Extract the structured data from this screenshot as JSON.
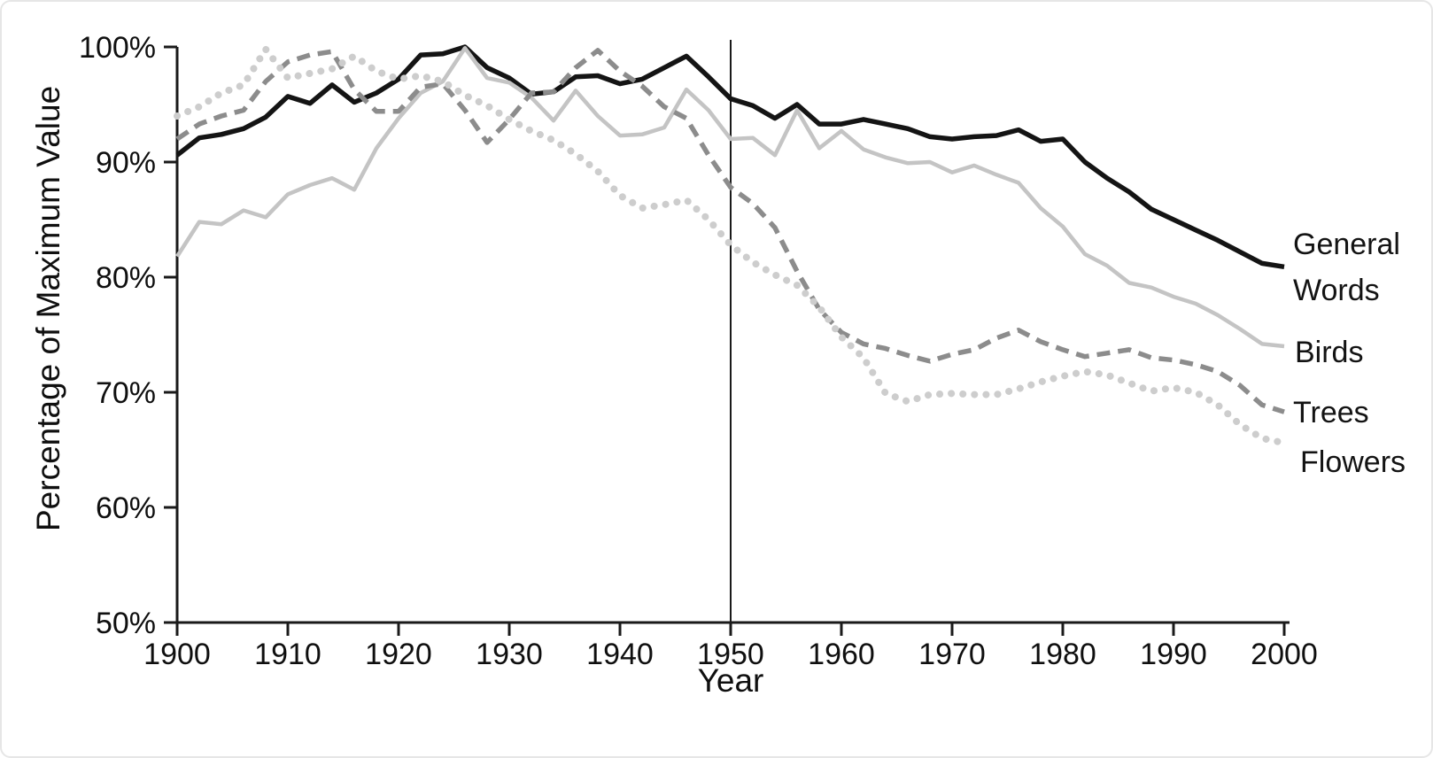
{
  "chart_data": {
    "type": "line",
    "title": "",
    "xlabel": "Year",
    "ylabel": "Percentage of Maximum Value",
    "grid": false,
    "legend_position": "right-of-plot",
    "x_axis": {
      "range": [
        1900,
        2000
      ],
      "ticks": [
        1900,
        1910,
        1920,
        1930,
        1940,
        1950,
        1960,
        1970,
        1980,
        1990,
        2000
      ]
    },
    "y_axis": {
      "range": [
        50,
        100
      ],
      "ticks": [
        {
          "label": "100%",
          "value": 100
        },
        {
          "label": "90%",
          "value": 90
        },
        {
          "label": "80%",
          "value": 80
        },
        {
          "label": "70%",
          "value": 70
        },
        {
          "label": "60%",
          "value": 60
        },
        {
          "label": "50%",
          "value": 50
        }
      ]
    },
    "reference_line": {
      "axis": "x",
      "value": 1950,
      "color": "#1a1a1a"
    },
    "axis_color": "#1a1a1a",
    "x": [
      1900,
      1902,
      1904,
      1906,
      1908,
      1910,
      1912,
      1914,
      1916,
      1918,
      1920,
      1922,
      1924,
      1926,
      1928,
      1930,
      1932,
      1934,
      1936,
      1938,
      1940,
      1942,
      1944,
      1946,
      1948,
      1950,
      1952,
      1954,
      1956,
      1958,
      1960,
      1962,
      1964,
      1966,
      1968,
      1970,
      1972,
      1974,
      1976,
      1978,
      1980,
      1982,
      1984,
      1986,
      1988,
      1990,
      1992,
      1994,
      1996,
      1998,
      2000
    ],
    "series": [
      {
        "name": "General Words",
        "label_lines": [
          "General",
          "Words"
        ],
        "line_style": "solid",
        "color": "#141414",
        "stroke_width": 5.5,
        "values": [
          90.6,
          92.1,
          92.4,
          92.9,
          93.9,
          95.7,
          95.1,
          96.7,
          95.2,
          96.0,
          97.2,
          99.3,
          99.4,
          100,
          98.2,
          97.3,
          95.9,
          96.1,
          97.4,
          97.5,
          96.8,
          97.2,
          98.2,
          99.2,
          97.4,
          95.5,
          94.9,
          93.8,
          95.0,
          93.3,
          93.3,
          93.7,
          93.3,
          92.9,
          92.2,
          92.0,
          92.2,
          92.3,
          92.8,
          91.8,
          92.0,
          90.0,
          88.6,
          87.4,
          85.9,
          85.0,
          84.1,
          83.2,
          82.2,
          81.2,
          80.9
        ]
      },
      {
        "name": "Birds",
        "label_lines": [
          "Birds"
        ],
        "line_style": "solid",
        "color": "#c4c4c4",
        "stroke_width": 4.5,
        "values": [
          81.8,
          84.8,
          84.6,
          85.8,
          85.2,
          87.2,
          88.0,
          88.6,
          87.6,
          91.2,
          93.8,
          96.0,
          97.0,
          99.9,
          97.3,
          96.9,
          95.6,
          93.6,
          96.2,
          94.0,
          92.3,
          92.4,
          93.0,
          96.3,
          94.5,
          92.0,
          92.1,
          90.6,
          94.5,
          91.2,
          92.7,
          91.1,
          90.4,
          89.9,
          90.0,
          89.1,
          89.7,
          88.9,
          88.2,
          86.0,
          84.4,
          82.0,
          81.0,
          79.5,
          79.1,
          78.3,
          77.7,
          76.7,
          75.5,
          74.2,
          74.0
        ]
      },
      {
        "name": "Trees",
        "label_lines": [
          "Trees"
        ],
        "line_style": "dashed",
        "color": "#8c8c8c",
        "stroke_width": 5.5,
        "values": [
          92.0,
          93.3,
          94.0,
          94.5,
          97.0,
          98.7,
          99.3,
          99.6,
          96.3,
          94.4,
          94.4,
          96.5,
          96.8,
          94.5,
          91.7,
          93.7,
          96.0,
          96.1,
          98.2,
          99.7,
          97.9,
          96.6,
          94.8,
          93.8,
          90.6,
          87.8,
          86.4,
          84.3,
          80.5,
          77.2,
          75.2,
          74.2,
          73.8,
          73.2,
          72.7,
          73.3,
          73.7,
          74.7,
          75.4,
          74.4,
          73.7,
          73.1,
          73.4,
          73.7,
          73.0,
          72.8,
          72.4,
          71.8,
          70.6,
          68.9,
          68.3
        ]
      },
      {
        "name": "Flowers",
        "label_lines": [
          "Flowers"
        ],
        "line_style": "dotted",
        "color": "#cdcdcd",
        "stroke_width": 8,
        "values": [
          94.0,
          94.8,
          96.0,
          96.7,
          99.8,
          97.3,
          97.7,
          98.1,
          99.2,
          97.9,
          97.2,
          97.5,
          97.0,
          95.8,
          94.9,
          93.7,
          92.7,
          91.9,
          90.7,
          89.2,
          87.1,
          86.0,
          86.3,
          86.7,
          85.0,
          82.8,
          81.3,
          80.2,
          79.3,
          77.4,
          74.8,
          73.0,
          69.9,
          69.2,
          69.8,
          69.9,
          69.8,
          69.8,
          70.3,
          70.9,
          71.4,
          71.8,
          71.5,
          70.8,
          70.1,
          70.4,
          70.0,
          68.9,
          67.2,
          66.0,
          65.6
        ]
      }
    ]
  }
}
